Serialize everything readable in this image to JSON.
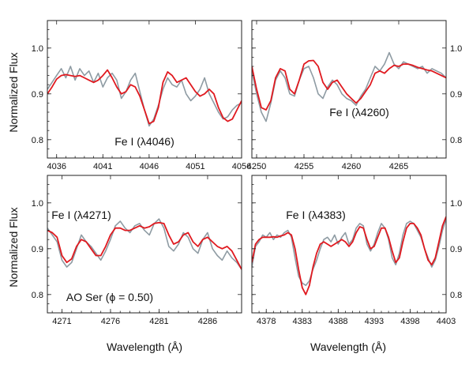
{
  "figure": {
    "ylabel": "Normalized Flux",
    "xlabel": "Wavelength (Å)",
    "axis_ticks_y": [
      "0.8",
      "0.9",
      "1.0"
    ]
  },
  "colors": {
    "observed": "#8e9ba3",
    "model": "#e0191f",
    "frame": "#222222"
  },
  "chart_data": [
    {
      "type": "line",
      "annotation": "Fe I (λ4046)",
      "xlim": [
        4035,
        4056
      ],
      "ylim": [
        0.76,
        1.06
      ],
      "xticks": [
        "4036",
        "4041",
        "4046",
        "4051",
        "4056"
      ],
      "yticks": [
        "0.8",
        "0.9",
        "1.0"
      ],
      "series": [
        {
          "role": "observed",
          "x": [
            4035,
            4035.5,
            4036,
            4036.5,
            4037,
            4037.5,
            4038,
            4038.5,
            4039,
            4039.5,
            4040,
            4040.5,
            4041,
            4041.5,
            4042,
            4042.5,
            4043,
            4043.5,
            4044,
            4044.5,
            4045,
            4045.5,
            4046,
            4046.5,
            4047,
            4047.5,
            4048,
            4048.5,
            4049,
            4049.5,
            4050,
            4050.5,
            4051,
            4051.5,
            4052,
            4052.5,
            4053,
            4053.5,
            4054,
            4054.5,
            4055,
            4055.5,
            4056
          ],
          "y": [
            0.91,
            0.925,
            0.94,
            0.955,
            0.935,
            0.96,
            0.93,
            0.955,
            0.94,
            0.95,
            0.925,
            0.945,
            0.915,
            0.935,
            0.945,
            0.93,
            0.89,
            0.905,
            0.93,
            0.945,
            0.905,
            0.865,
            0.83,
            0.845,
            0.875,
            0.91,
            0.935,
            0.92,
            0.915,
            0.93,
            0.9,
            0.885,
            0.895,
            0.91,
            0.935,
            0.9,
            0.88,
            0.86,
            0.845,
            0.85,
            0.865,
            0.875,
            0.88
          ]
        },
        {
          "role": "model",
          "x": [
            4035,
            4035.5,
            4036,
            4036.5,
            4037,
            4037.5,
            4038,
            4038.5,
            4039,
            4039.5,
            4040,
            4040.5,
            4041,
            4041.5,
            4042,
            4042.5,
            4043,
            4043.5,
            4044,
            4044.5,
            4045,
            4045.5,
            4046,
            4046.5,
            4047,
            4047.5,
            4048,
            4048.5,
            4049,
            4049.5,
            4050,
            4050.5,
            4051,
            4051.5,
            4052,
            4052.5,
            4053,
            4053.5,
            4054,
            4054.5,
            4055,
            4055.5,
            4056
          ],
          "y": [
            0.9,
            0.915,
            0.932,
            0.94,
            0.942,
            0.94,
            0.938,
            0.94,
            0.935,
            0.93,
            0.925,
            0.93,
            0.94,
            0.952,
            0.935,
            0.915,
            0.9,
            0.905,
            0.92,
            0.915,
            0.895,
            0.865,
            0.835,
            0.84,
            0.87,
            0.925,
            0.948,
            0.94,
            0.925,
            0.93,
            0.935,
            0.92,
            0.905,
            0.895,
            0.9,
            0.91,
            0.9,
            0.87,
            0.848,
            0.84,
            0.845,
            0.865,
            0.885
          ]
        }
      ]
    },
    {
      "type": "line",
      "annotation": "Fe I (λ4260)",
      "xlim": [
        4249.5,
        4270
      ],
      "ylim": [
        0.76,
        1.06
      ],
      "xticks": [
        "4250",
        "4255",
        "4260",
        "4265"
      ],
      "yticks": [
        "0.8",
        "0.9",
        "1.0"
      ],
      "series": [
        {
          "role": "observed",
          "x": [
            4249.5,
            4250,
            4250.5,
            4251,
            4251.5,
            4252,
            4252.5,
            4253,
            4253.5,
            4254,
            4254.5,
            4255,
            4255.5,
            4256,
            4256.5,
            4257,
            4257.5,
            4258,
            4258.5,
            4259,
            4259.5,
            4260,
            4260.5,
            4261,
            4261.5,
            4262,
            4262.5,
            4263,
            4263.5,
            4264,
            4264.5,
            4265,
            4265.5,
            4266,
            4266.5,
            4267,
            4267.5,
            4268,
            4268.5,
            4269,
            4269.5,
            4270
          ],
          "y": [
            0.95,
            0.9,
            0.86,
            0.84,
            0.88,
            0.93,
            0.95,
            0.935,
            0.9,
            0.895,
            0.93,
            0.955,
            0.96,
            0.935,
            0.9,
            0.89,
            0.915,
            0.93,
            0.92,
            0.9,
            0.89,
            0.885,
            0.875,
            0.895,
            0.91,
            0.935,
            0.96,
            0.95,
            0.965,
            0.99,
            0.965,
            0.955,
            0.97,
            0.965,
            0.96,
            0.955,
            0.96,
            0.945,
            0.955,
            0.95,
            0.945,
            0.935
          ]
        },
        {
          "role": "model",
          "x": [
            4249.5,
            4250,
            4250.5,
            4251,
            4251.5,
            4252,
            4252.5,
            4253,
            4253.5,
            4254,
            4254.5,
            4255,
            4255.5,
            4256,
            4256.5,
            4257,
            4257.5,
            4258,
            4258.5,
            4259,
            4259.5,
            4260,
            4260.5,
            4261,
            4261.5,
            4262,
            4262.5,
            4263,
            4263.5,
            4264,
            4264.5,
            4265,
            4265.5,
            4266,
            4266.5,
            4267,
            4267.5,
            4268,
            4268.5,
            4269,
            4269.5,
            4270
          ],
          "y": [
            0.96,
            0.91,
            0.87,
            0.865,
            0.885,
            0.935,
            0.955,
            0.95,
            0.91,
            0.9,
            0.93,
            0.965,
            0.972,
            0.973,
            0.96,
            0.925,
            0.91,
            0.925,
            0.93,
            0.915,
            0.9,
            0.89,
            0.88,
            0.89,
            0.905,
            0.92,
            0.945,
            0.95,
            0.945,
            0.955,
            0.962,
            0.96,
            0.965,
            0.965,
            0.962,
            0.958,
            0.955,
            0.952,
            0.95,
            0.945,
            0.94,
            0.935
          ]
        }
      ]
    },
    {
      "type": "line",
      "annotation": "Fe I (λ4271)",
      "annotation2": "AO Ser (ϕ = 0.50)",
      "xlim": [
        4269.5,
        4289.5
      ],
      "ylim": [
        0.76,
        1.06
      ],
      "xticks": [
        "4271",
        "4276",
        "4281",
        "4286"
      ],
      "yticks": [
        "0.8",
        "0.9",
        "1.0"
      ],
      "series": [
        {
          "role": "observed",
          "x": [
            4269.5,
            4270,
            4270.5,
            4271,
            4271.5,
            4272,
            4272.5,
            4273,
            4273.5,
            4274,
            4274.5,
            4275,
            4275.5,
            4276,
            4276.5,
            4277,
            4277.5,
            4278,
            4278.5,
            4279,
            4279.5,
            4280,
            4280.5,
            4281,
            4281.5,
            4282,
            4282.5,
            4283,
            4283.5,
            4284,
            4284.5,
            4285,
            4285.5,
            4286,
            4286.5,
            4287,
            4287.5,
            4288,
            4288.5,
            4289,
            4289.5
          ],
          "y": [
            0.945,
            0.93,
            0.915,
            0.875,
            0.86,
            0.87,
            0.9,
            0.93,
            0.915,
            0.905,
            0.89,
            0.875,
            0.895,
            0.92,
            0.95,
            0.96,
            0.945,
            0.935,
            0.95,
            0.955,
            0.94,
            0.93,
            0.955,
            0.965,
            0.945,
            0.905,
            0.895,
            0.91,
            0.935,
            0.925,
            0.9,
            0.89,
            0.92,
            0.935,
            0.9,
            0.885,
            0.875,
            0.895,
            0.88,
            0.87,
            0.855
          ]
        },
        {
          "role": "model",
          "x": [
            4269.5,
            4270,
            4270.5,
            4271,
            4271.5,
            4272,
            4272.5,
            4273,
            4273.5,
            4274,
            4274.5,
            4275,
            4275.5,
            4276,
            4276.5,
            4277,
            4277.5,
            4278,
            4278.5,
            4279,
            4279.5,
            4280,
            4280.5,
            4281,
            4281.5,
            4282,
            4282.5,
            4283,
            4283.5,
            4284,
            4284.5,
            4285,
            4285.5,
            4286,
            4286.5,
            4287,
            4287.5,
            4288,
            4288.5,
            4289,
            4289.5
          ],
          "y": [
            0.94,
            0.935,
            0.925,
            0.885,
            0.87,
            0.878,
            0.905,
            0.92,
            0.915,
            0.9,
            0.885,
            0.885,
            0.905,
            0.93,
            0.945,
            0.945,
            0.94,
            0.94,
            0.945,
            0.95,
            0.945,
            0.948,
            0.955,
            0.957,
            0.955,
            0.93,
            0.91,
            0.915,
            0.93,
            0.935,
            0.915,
            0.905,
            0.92,
            0.925,
            0.915,
            0.905,
            0.9,
            0.905,
            0.895,
            0.875,
            0.855
          ]
        }
      ]
    },
    {
      "type": "line",
      "annotation": "Fe I (λ4383)",
      "xlim": [
        4376,
        4403
      ],
      "ylim": [
        0.76,
        1.06
      ],
      "xticks": [
        "4378",
        "4383",
        "4388",
        "4393",
        "4398",
        "4403"
      ],
      "yticks": [
        "0.8",
        "0.9",
        "1.0"
      ],
      "series": [
        {
          "role": "observed",
          "x": [
            4376,
            4376.5,
            4377,
            4377.5,
            4378,
            4378.5,
            4379,
            4379.5,
            4380,
            4380.5,
            4381,
            4381.5,
            4382,
            4382.5,
            4383,
            4383.5,
            4384,
            4384.5,
            4385,
            4385.5,
            4386,
            4386.5,
            4387,
            4387.5,
            4388,
            4388.5,
            4389,
            4389.5,
            4390,
            4390.5,
            4391,
            4391.5,
            4392,
            4392.5,
            4393,
            4393.5,
            4394,
            4394.5,
            4395,
            4395.5,
            4396,
            4396.5,
            4397,
            4397.5,
            4398,
            4398.5,
            4399,
            4399.5,
            4400,
            4400.5,
            4401,
            4401.5,
            4402,
            4402.5,
            4403
          ],
          "y": [
            0.86,
            0.905,
            0.915,
            0.93,
            0.925,
            0.935,
            0.92,
            0.93,
            0.925,
            0.935,
            0.94,
            0.925,
            0.88,
            0.84,
            0.825,
            0.82,
            0.83,
            0.855,
            0.875,
            0.9,
            0.92,
            0.925,
            0.915,
            0.93,
            0.91,
            0.925,
            0.935,
            0.91,
            0.92,
            0.945,
            0.955,
            0.95,
            0.91,
            0.895,
            0.91,
            0.935,
            0.955,
            0.945,
            0.92,
            0.88,
            0.865,
            0.89,
            0.93,
            0.955,
            0.96,
            0.955,
            0.94,
            0.925,
            0.9,
            0.88,
            0.86,
            0.875,
            0.905,
            0.94,
            0.965
          ]
        },
        {
          "role": "model",
          "x": [
            4376,
            4376.5,
            4377,
            4377.5,
            4378,
            4378.5,
            4379,
            4379.5,
            4380,
            4380.5,
            4381,
            4381.5,
            4382,
            4382.5,
            4383,
            4383.5,
            4384,
            4384.5,
            4385,
            4385.5,
            4386,
            4386.5,
            4387,
            4387.5,
            4388,
            4388.5,
            4389,
            4389.5,
            4390,
            4390.5,
            4391,
            4391.5,
            4392,
            4392.5,
            4393,
            4393.5,
            4394,
            4394.5,
            4395,
            4395.5,
            4396,
            4396.5,
            4397,
            4397.5,
            4398,
            4398.5,
            4399,
            4399.5,
            4400,
            4400.5,
            4401,
            4401.5,
            4402,
            4402.5,
            4403
          ],
          "y": [
            0.87,
            0.91,
            0.92,
            0.925,
            0.925,
            0.925,
            0.926,
            0.925,
            0.928,
            0.93,
            0.935,
            0.93,
            0.9,
            0.855,
            0.815,
            0.8,
            0.82,
            0.86,
            0.89,
            0.91,
            0.915,
            0.91,
            0.905,
            0.91,
            0.915,
            0.92,
            0.915,
            0.905,
            0.915,
            0.935,
            0.948,
            0.945,
            0.92,
            0.9,
            0.905,
            0.925,
            0.945,
            0.945,
            0.925,
            0.895,
            0.87,
            0.88,
            0.915,
            0.945,
            0.955,
            0.955,
            0.945,
            0.93,
            0.9,
            0.875,
            0.865,
            0.88,
            0.915,
            0.95,
            0.97
          ]
        }
      ]
    }
  ]
}
